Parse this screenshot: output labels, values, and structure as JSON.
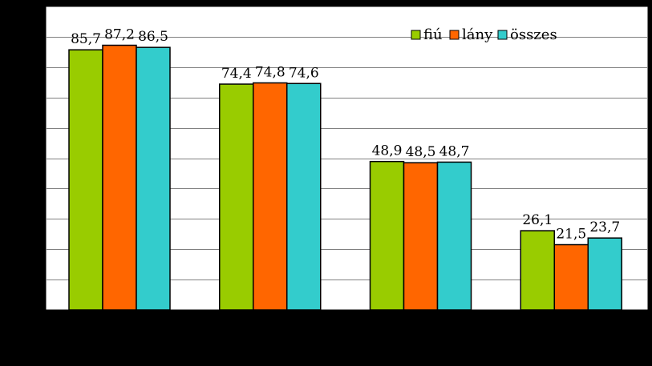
{
  "chart_data": {
    "type": "bar",
    "categories": [
      "",
      "",
      "",
      ""
    ],
    "series": [
      {
        "name": "fiú",
        "color": "#99CC00",
        "values": [
          85.7,
          74.4,
          48.9,
          26.1
        ],
        "labels": [
          "85,7",
          "74,4",
          "48,9",
          "26,1"
        ]
      },
      {
        "name": "lány",
        "color": "#FF6600",
        "values": [
          87.2,
          74.8,
          48.5,
          21.5
        ],
        "labels": [
          "87,2",
          "74,8",
          "48,5",
          "21,5"
        ]
      },
      {
        "name": "összes",
        "color": "#33CCCC",
        "values": [
          86.5,
          74.6,
          48.7,
          23.7
        ],
        "labels": [
          "86,5",
          "74,6",
          "48,7",
          "23,7"
        ]
      }
    ],
    "title": "",
    "xlabel": "",
    "ylabel": "",
    "ylim": [
      0,
      100
    ],
    "grid": true,
    "legend": "top-right",
    "plot_background": "#FFFFFF",
    "gridline_color": "#808080",
    "page_background": "#000000"
  }
}
